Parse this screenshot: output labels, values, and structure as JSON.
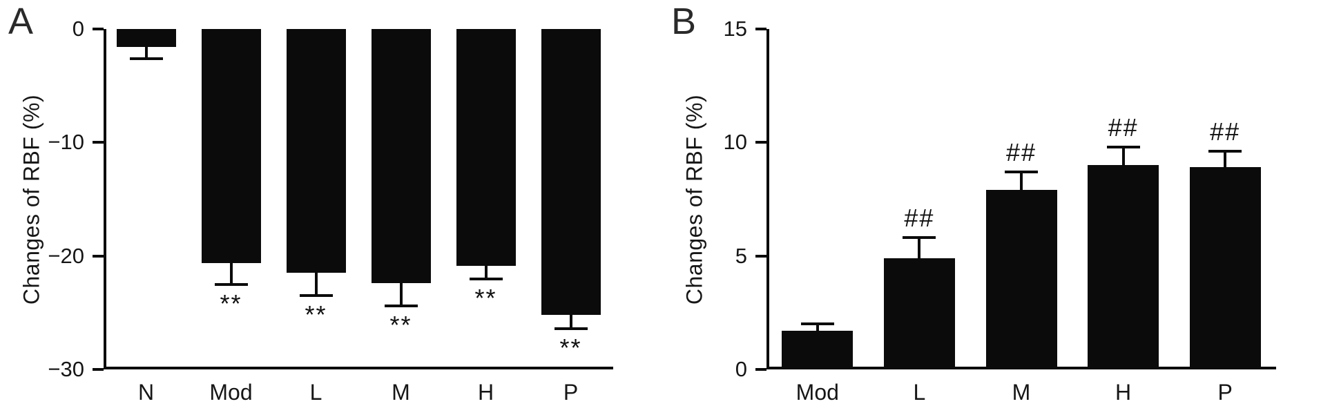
{
  "figure": {
    "background": "#ffffff",
    "bar_color": "#0b0b0b",
    "axis_color": "#0b0b0b",
    "text_color": "#141414"
  },
  "chart_data": [
    {
      "id": "A",
      "panel_label": "A",
      "type": "bar",
      "title": "",
      "xlabel": "",
      "ylabel": "Changes of RBF (%)",
      "categories": [
        "N",
        "Mod",
        "L",
        "M",
        "H",
        "P"
      ],
      "values": [
        -1.6,
        -20.6,
        -21.5,
        -22.4,
        -20.9,
        -25.2
      ],
      "errors": [
        1.0,
        1.9,
        2.0,
        2.0,
        1.1,
        1.2
      ],
      "annotations": [
        "",
        "**",
        "**",
        "**",
        "**",
        "**"
      ],
      "ylim": [
        -30,
        0
      ],
      "yticks": [
        {
          "value": 0,
          "label": "0"
        },
        {
          "value": -10,
          "label": "−10"
        },
        {
          "value": -20,
          "label": "−20"
        },
        {
          "value": -30,
          "label": "−30"
        }
      ],
      "grid": false,
      "legend": "none"
    },
    {
      "id": "B",
      "panel_label": "B",
      "type": "bar",
      "title": "",
      "xlabel": "",
      "ylabel": "Changes of RBF (%)",
      "categories": [
        "Mod",
        "L",
        "M",
        "H",
        "P"
      ],
      "values": [
        1.7,
        4.9,
        7.9,
        9.0,
        8.9
      ],
      "errors": [
        0.3,
        0.9,
        0.8,
        0.8,
        0.7
      ],
      "annotations": [
        "",
        "##",
        "##",
        "##",
        "##"
      ],
      "ylim": [
        0,
        15
      ],
      "yticks": [
        {
          "value": 0,
          "label": "0"
        },
        {
          "value": 5,
          "label": "5"
        },
        {
          "value": 10,
          "label": "10"
        },
        {
          "value": 15,
          "label": "15"
        }
      ],
      "grid": false,
      "legend": "none"
    }
  ]
}
